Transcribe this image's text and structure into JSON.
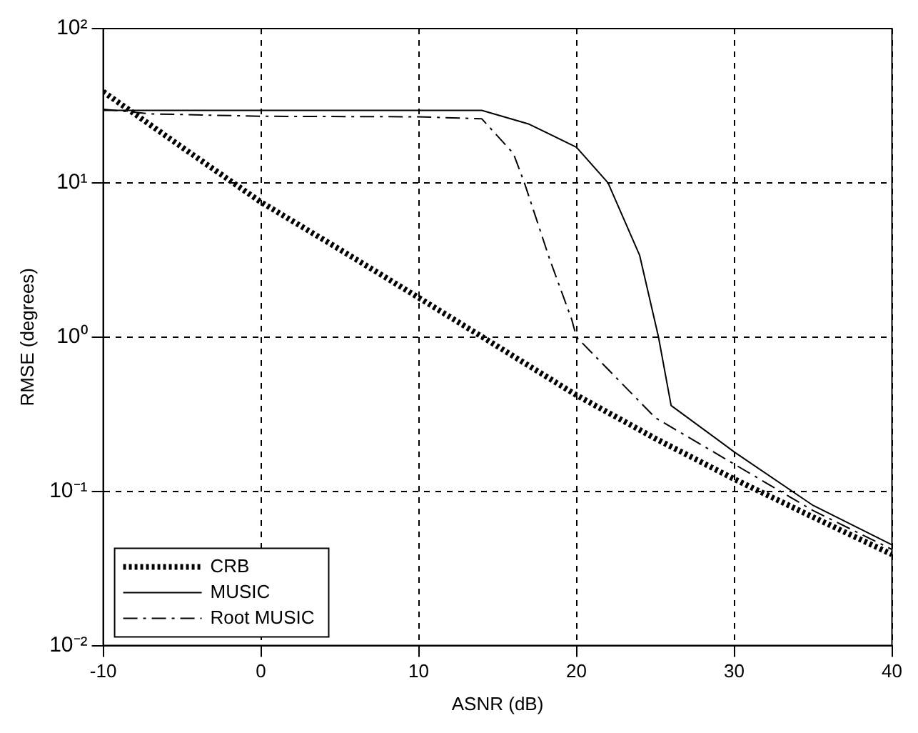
{
  "chart_data": {
    "type": "line",
    "xlabel": "ASNR (dB)",
    "ylabel": "RMSE (degrees)",
    "log": "y",
    "grid": true,
    "legend": "bottom left",
    "marker": "none",
    "xlim": [
      -10,
      40
    ],
    "xticks": [
      -10,
      0,
      10,
      20,
      30,
      40
    ],
    "ylim": [
      0.01,
      100
    ],
    "yticks": [
      {
        "value": 0.01,
        "label": "10⁻²"
      },
      {
        "value": 0.1,
        "label": "10⁻¹"
      },
      {
        "value": 1,
        "label": "10⁰"
      },
      {
        "value": 10,
        "label": "10¹"
      },
      {
        "value": 100,
        "label": "10²"
      }
    ],
    "series": [
      {
        "name": "CRB",
        "color": "#000000",
        "line_style": "dotted",
        "x": [
          -10,
          -5,
          0,
          5,
          10,
          15,
          20,
          25,
          30,
          35,
          40
        ],
        "values": [
          39,
          17,
          7.5,
          3.7,
          1.8,
          0.87,
          0.42,
          0.22,
          0.12,
          0.068,
          0.039
        ]
      },
      {
        "name": "MUSIC",
        "color": "#000000",
        "line_style": "solid",
        "x": [
          -10,
          -5,
          0,
          5,
          10,
          14,
          17,
          20,
          22,
          24,
          25.2,
          26,
          30,
          35,
          40
        ],
        "values": [
          29.5,
          29.5,
          29.5,
          29.5,
          29.5,
          29.5,
          24,
          17,
          10,
          3.4,
          1,
          0.36,
          0.18,
          0.081,
          0.045
        ]
      },
      {
        "name": "Root MUSIC",
        "color": "#000000",
        "line_style": "dashed",
        "x": [
          -10,
          -7,
          0,
          10,
          14,
          16,
          16.7,
          18.3,
          19.7,
          20,
          25,
          30,
          35,
          40
        ],
        "values": [
          30,
          28,
          27,
          26.8,
          26,
          15.5,
          10,
          3.2,
          1.3,
          1,
          0.3,
          0.15,
          0.075,
          0.042
        ]
      }
    ]
  }
}
